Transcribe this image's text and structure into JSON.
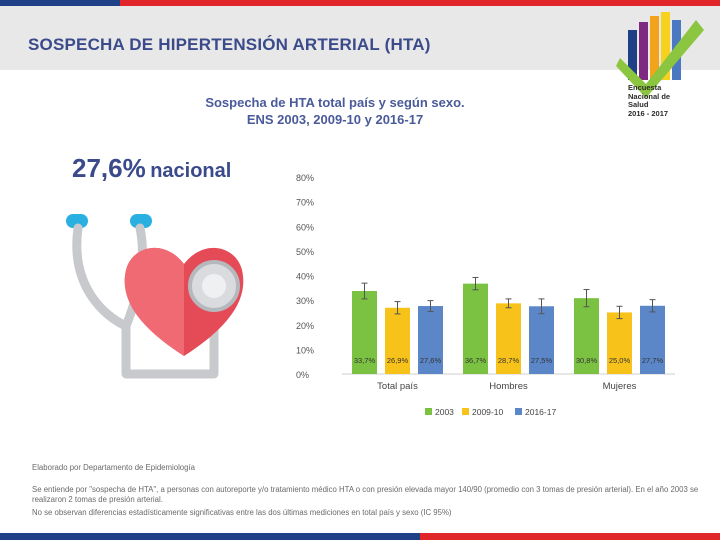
{
  "header": {
    "title": "SOSPECHA DE HIPERTENSIÓN ARTERIAL (HTA)"
  },
  "logo": {
    "line1": "Encuesta",
    "line2": "Nacional de",
    "line3": "Salud",
    "line4": "2016 - 2017",
    "colors": [
      "#1f3f87",
      "#7e2a82",
      "#f3a21b",
      "#f6d21e",
      "#4a78c1",
      "#8cc53f"
    ]
  },
  "summary": {
    "value": "27,6%",
    "label": "nacional"
  },
  "chart_data": {
    "type": "bar",
    "title_line1": "Sospecha de HTA total país y según sexo.",
    "title_line2": "ENS 2003, 2009-10 y 2016-17",
    "categories": [
      "Total país",
      "Hombres",
      "Mujeres"
    ],
    "series": [
      {
        "name": "2003",
        "color": "#7cc242",
        "values": [
          33.7,
          36.7,
          30.8
        ],
        "labels": [
          "33,7%",
          "36,7%",
          "30,8%"
        ]
      },
      {
        "name": "2009-10",
        "color": "#f7c21a",
        "values": [
          26.9,
          28.7,
          25.0
        ],
        "labels": [
          "26,9%",
          "28,7%",
          "25,0%"
        ]
      },
      {
        "name": "2016-17",
        "color": "#5b86c8",
        "values": [
          27.6,
          27.5,
          27.7
        ],
        "labels": [
          "27,6%",
          "27,5%",
          "27,7%"
        ]
      }
    ],
    "errors": [
      [
        3.2,
        2.5,
        3.5
      ],
      [
        2.5,
        1.8,
        2.5
      ],
      [
        2.2,
        3.0,
        2.5
      ]
    ],
    "ylim": [
      0,
      80
    ],
    "yticks": [
      0,
      10,
      20,
      30,
      40,
      50,
      60,
      70,
      80
    ],
    "ytick_labels": [
      "0%",
      "10%",
      "20%",
      "30%",
      "40%",
      "50%",
      "60%",
      "70%",
      "80%"
    ],
    "xlabel": "",
    "ylabel": "",
    "legend_position": "bottom"
  },
  "footnotes": {
    "line1": "Elaborado por Departamento de Epidemiología",
    "line2": "Se entiende por \"sospecha de HTA\", a personas con autoreporte y/o tratamiento médico HTA o con presión elevada mayor 140/90 (promedio con 3 tomas de presión arterial). En el año 2003 se realizaron 2 tomas de presión arterial.",
    "line3": "No se observan diferencias estadísticamente significativas entre las dos últimas mediciones en total país y sexo (IC 95%)"
  }
}
